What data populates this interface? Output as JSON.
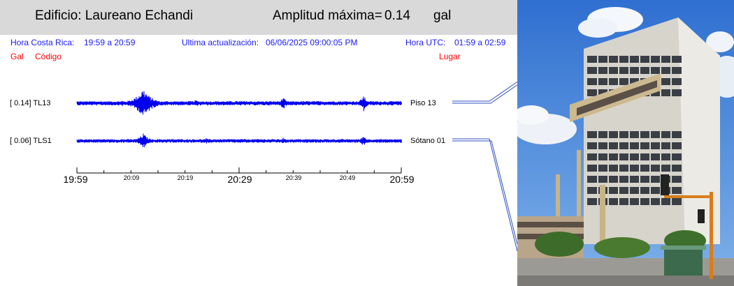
{
  "header": {
    "building_label": "Edificio: Laureano Echandi",
    "amplitude_label": "Amplitud máxima=",
    "amplitude_value": "0.14",
    "amplitude_unit": "gal"
  },
  "info": {
    "local_time_label": "Hora Costa Rica:",
    "local_time_range": "19:59 a 20:59",
    "update_label": "Ultima actualización:",
    "update_value": "06/06/2025 09:00:05 PM",
    "utc_label": "Hora UTC:",
    "utc_range": "01:59 a 02:59"
  },
  "columns": {
    "gal": "Gal",
    "code": "Código",
    "place": "Lugar"
  },
  "channels": [
    {
      "value": "[   0.14] TL13",
      "code": "TL13",
      "peak_gal": 0.14,
      "place": "Piso 13"
    },
    {
      "value": "[   0.06] TLS1",
      "code": "TLS1",
      "peak_gal": 0.06,
      "place": "Sótano 01"
    }
  ],
  "time_axis": {
    "major_labels": [
      "19:59",
      "20:29",
      "20:59"
    ],
    "minor_labels": [
      "20:09",
      "20:19",
      "20:39",
      "20:49"
    ]
  },
  "colors": {
    "trace": "#0000ee",
    "header_bg": "#d9d9d9",
    "info_text": "#1a1aff",
    "column_text": "#ff0000"
  },
  "photo": {
    "description_icon": "building-photo"
  }
}
